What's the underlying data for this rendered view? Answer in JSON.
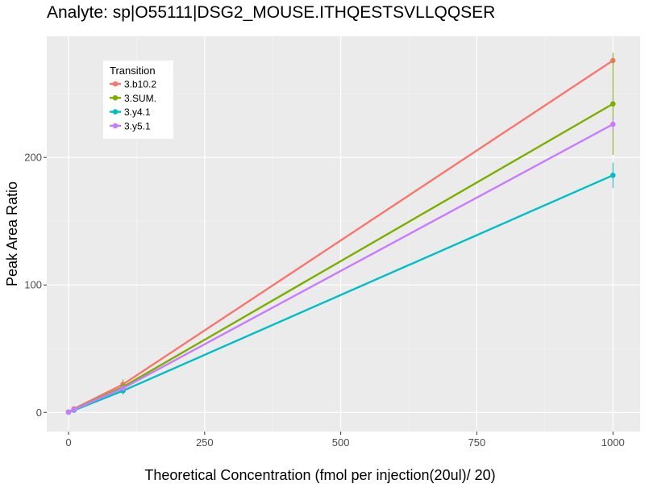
{
  "chart_data": {
    "type": "line",
    "title": "Analyte: sp|O55111|DSG2_MOUSE.ITHQESTSVLLQQSER",
    "xlabel": "Theoretical Concentration (fmol per injection(20ul)/ 20)",
    "ylabel": "Peak Area Ratio",
    "xlim": [
      -40,
      1050
    ],
    "ylim": [
      -15,
      295
    ],
    "xticks": [
      0,
      250,
      500,
      750,
      1000
    ],
    "yticks": [
      0,
      100,
      200
    ],
    "xtick_labels": [
      "0",
      "250",
      "500",
      "750",
      "1000"
    ],
    "ytick_labels": [
      "0",
      "100",
      "200"
    ],
    "grid": true,
    "legend": {
      "title": "Transition",
      "position": "top-left"
    },
    "x": [
      0,
      10,
      100,
      1000
    ],
    "series": [
      {
        "name": "3.b10.2",
        "color": "#F8766D",
        "values": [
          0.3,
          2.8,
          22,
          276
        ],
        "error": [
          0.5,
          0.5,
          3,
          0
        ]
      },
      {
        "name": "3.SUM.",
        "color": "#7CAE00",
        "values": [
          0.3,
          2.3,
          20,
          242
        ],
        "error": [
          0.5,
          0.5,
          6,
          40
        ]
      },
      {
        "name": "3.y4.1",
        "color": "#00BFC4",
        "values": [
          0.2,
          1.7,
          17,
          186
        ],
        "error": [
          0.5,
          0.5,
          2,
          10
        ]
      },
      {
        "name": "3.y5.1",
        "color": "#C77CFF",
        "values": [
          0.2,
          2.2,
          19,
          226
        ],
        "error": [
          0.5,
          0.5,
          2,
          5
        ]
      }
    ]
  }
}
